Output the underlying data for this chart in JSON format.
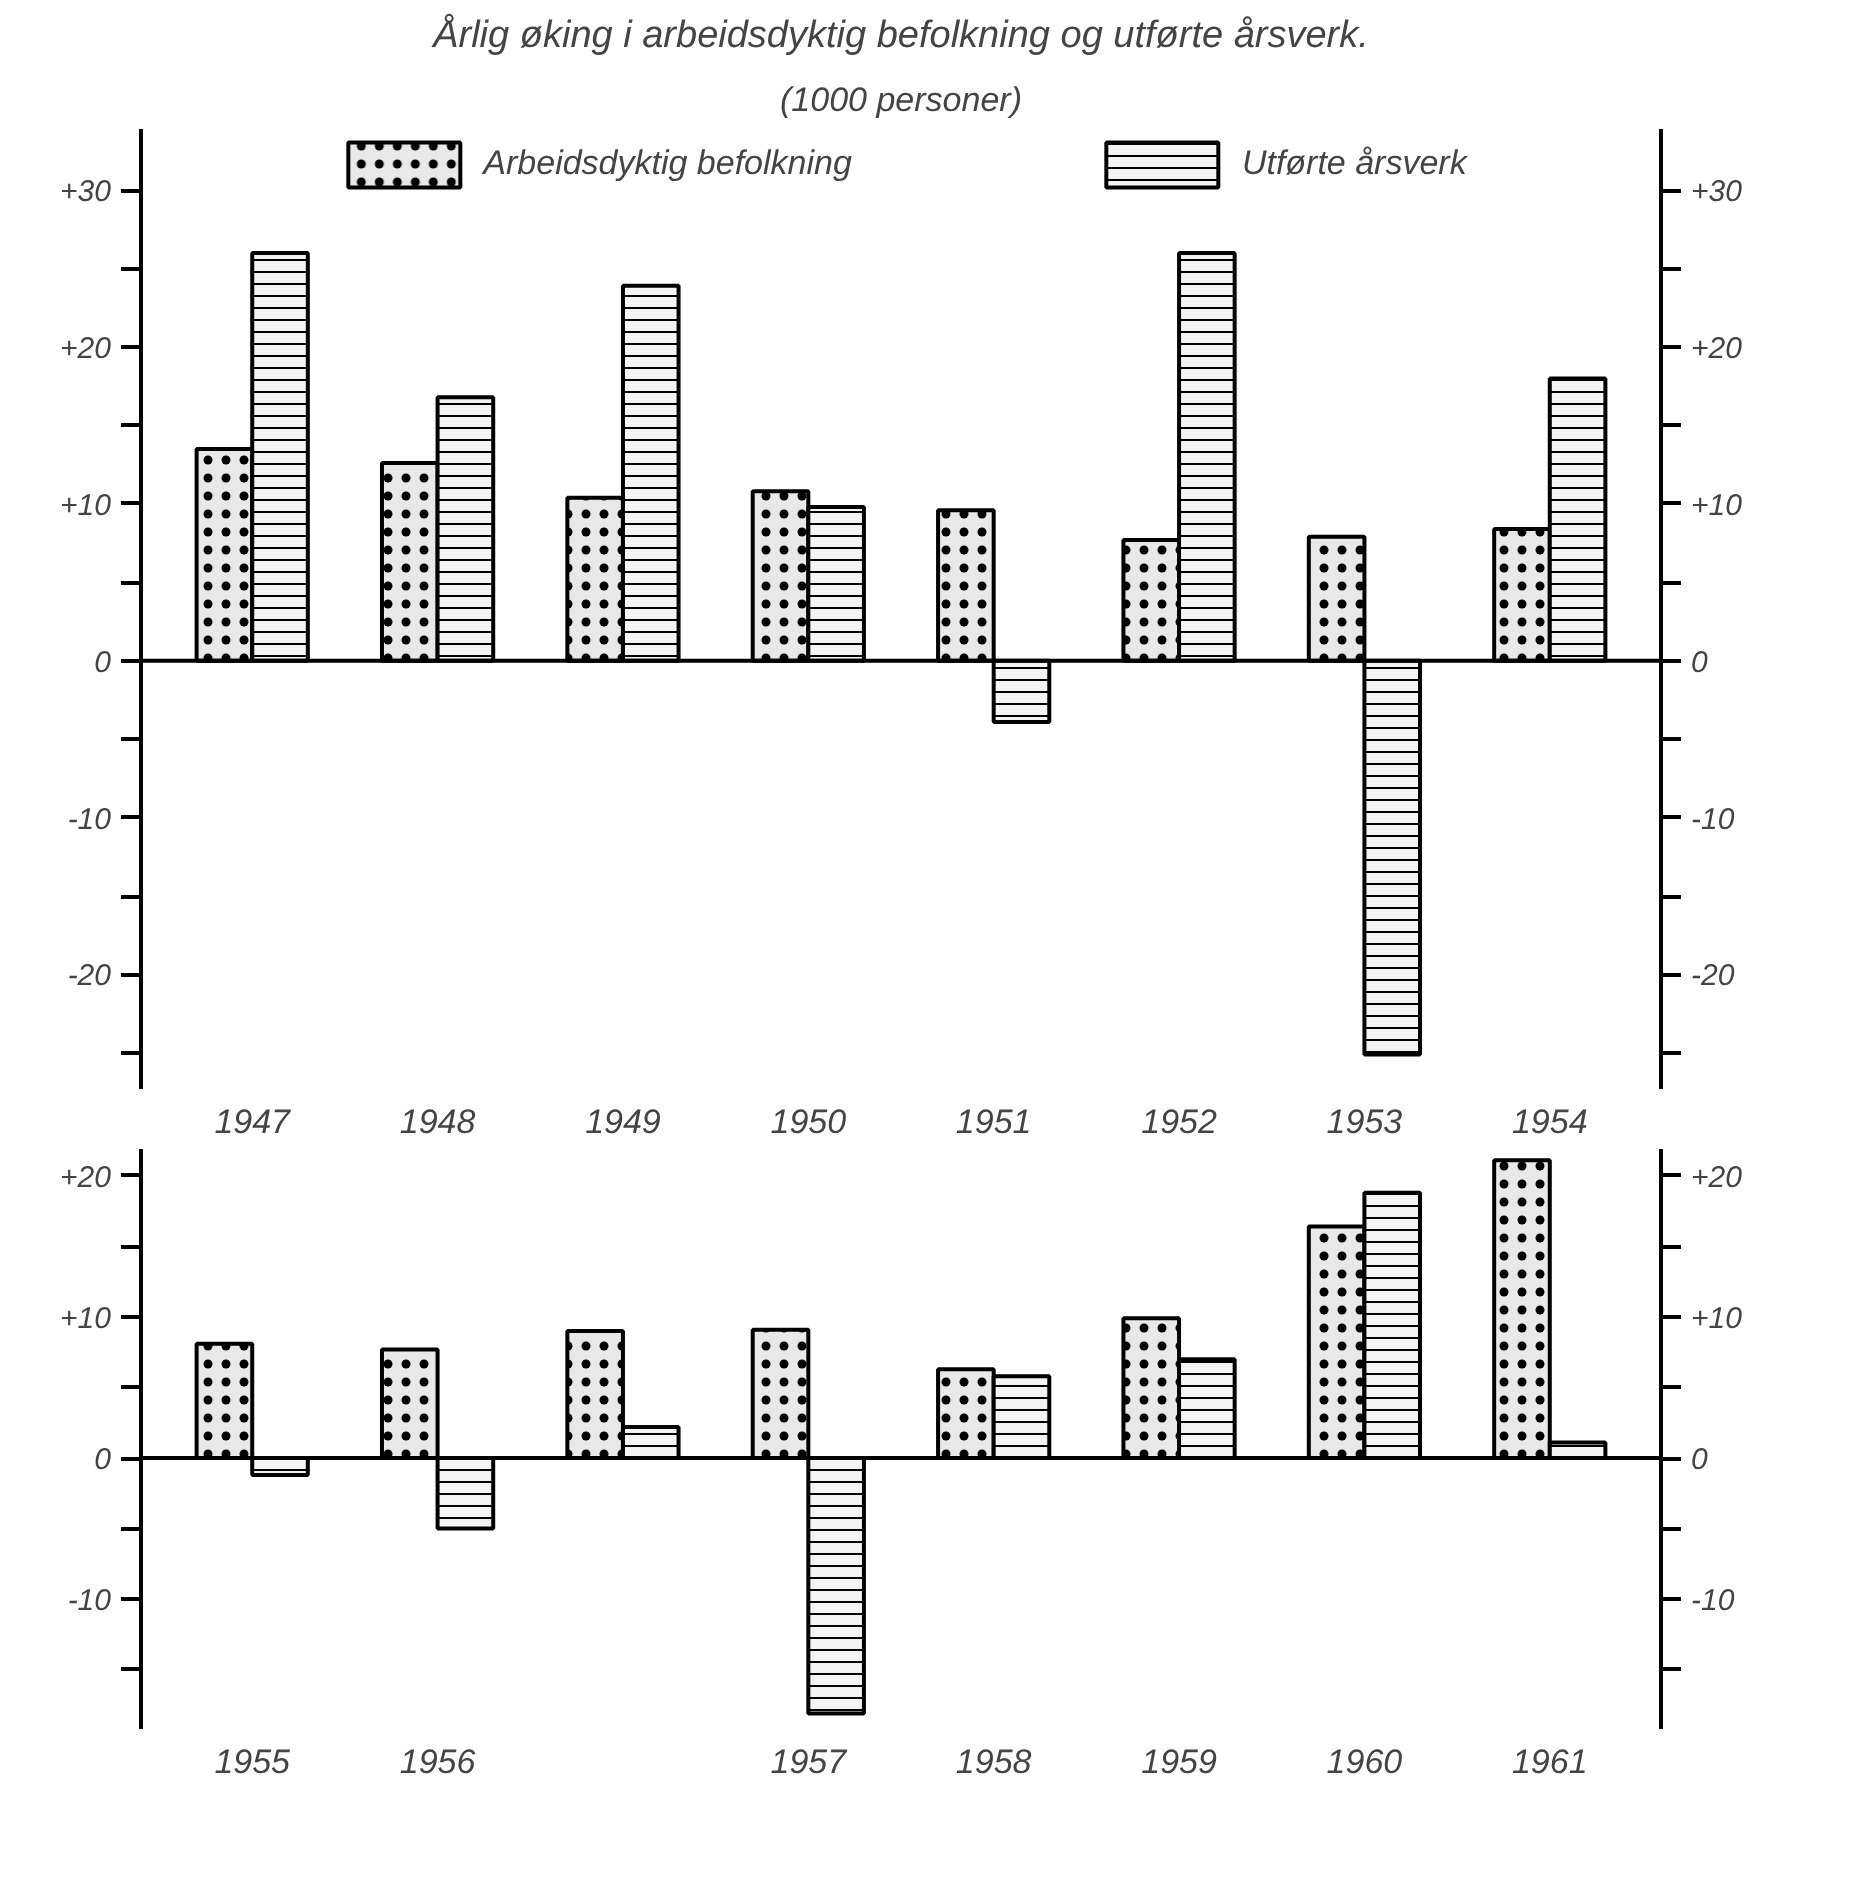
{
  "chart_data": [
    {
      "type": "bar",
      "title": "Årlig øking i arbeidsdyktig befolkning og utførte årsverk.",
      "subtitle": "(1000 personer)",
      "categories": [
        "1947",
        "1948",
        "1949",
        "1950",
        "1951",
        "1952",
        "1953",
        "1954"
      ],
      "series": [
        {
          "name": "Arbeidsdyktig befolkning",
          "color": "#e8e8e8",
          "values": [
            13.5,
            12.6,
            10.4,
            10.8,
            9.6,
            7.7,
            7.9,
            8.4
          ]
        },
        {
          "name": "Utførte årsverk",
          "color": "#f4f4f4",
          "values": [
            26,
            16.8,
            23.9,
            9.8,
            -3.9,
            26,
            -25.1,
            18
          ]
        }
      ],
      "ylim": [
        -27.3,
        33.9
      ],
      "yticks": [
        {
          "value": -25,
          "label": null
        },
        {
          "value": -20,
          "label": "-20"
        },
        {
          "value": -15,
          "label": null
        },
        {
          "value": -10,
          "label": "-10"
        },
        {
          "value": -5,
          "label": null
        },
        0,
        {
          "value": 5,
          "label": null
        },
        {
          "value": 10,
          "label": "+10"
        },
        {
          "value": 15,
          "label": null
        },
        {
          "value": 20,
          "label": "+20"
        },
        {
          "value": 25,
          "label": null
        },
        {
          "value": 30,
          "label": "+30"
        }
      ],
      "y2lim": [
        -27.3,
        33.9
      ],
      "y2ticks": [
        {
          "value": -25,
          "label": null
        },
        {
          "value": -20,
          "label": "-20"
        },
        {
          "value": -15,
          "label": null
        },
        {
          "value": -10,
          "label": "-10"
        },
        {
          "value": -5,
          "label": null
        },
        0,
        {
          "value": 5,
          "label": null
        },
        {
          "value": 10,
          "label": "+10"
        },
        {
          "value": 15,
          "label": null
        },
        {
          "value": 20,
          "label": "+20"
        },
        {
          "value": 25,
          "label": null
        },
        {
          "value": 30,
          "label": "+30"
        }
      ],
      "legend": "top"
    },
    {
      "type": "bar",
      "categories": [
        "1955",
        "1956",
        null,
        "1957",
        "1958",
        "1959",
        "1960",
        "1961"
      ],
      "series": [
        {
          "color": "#e8e8e8",
          "values": [
            8.1,
            7.7,
            9.0,
            9.1,
            6.3,
            9.9,
            16.4,
            21.1
          ]
        },
        {
          "color": "#f4f4f4",
          "values": [
            -1.2,
            -5.0,
            2.2,
            -18.1,
            5.8,
            7.0,
            18.8,
            1.1
          ]
        }
      ],
      "ylim": [
        -19.2,
        21.9
      ],
      "yticks": [
        {
          "value": -15,
          "label": null
        },
        {
          "value": -10,
          "label": "-10"
        },
        {
          "value": -5,
          "label": null
        },
        0,
        {
          "value": 5,
          "label": null
        },
        {
          "value": 10,
          "label": "+10"
        },
        {
          "value": 15,
          "label": null
        },
        {
          "value": 20,
          "label": "+20"
        }
      ],
      "y2lim": [
        -19.2,
        21.9
      ],
      "y2ticks": [
        {
          "value": -15,
          "label": null
        },
        {
          "value": -10,
          "label": "-10"
        },
        {
          "value": -5,
          "label": null
        },
        0,
        {
          "value": 5,
          "label": null
        },
        {
          "value": 10,
          "label": "+10"
        },
        {
          "value": 15,
          "label": null
        },
        {
          "value": 20,
          "label": "+20"
        }
      ]
    }
  ]
}
